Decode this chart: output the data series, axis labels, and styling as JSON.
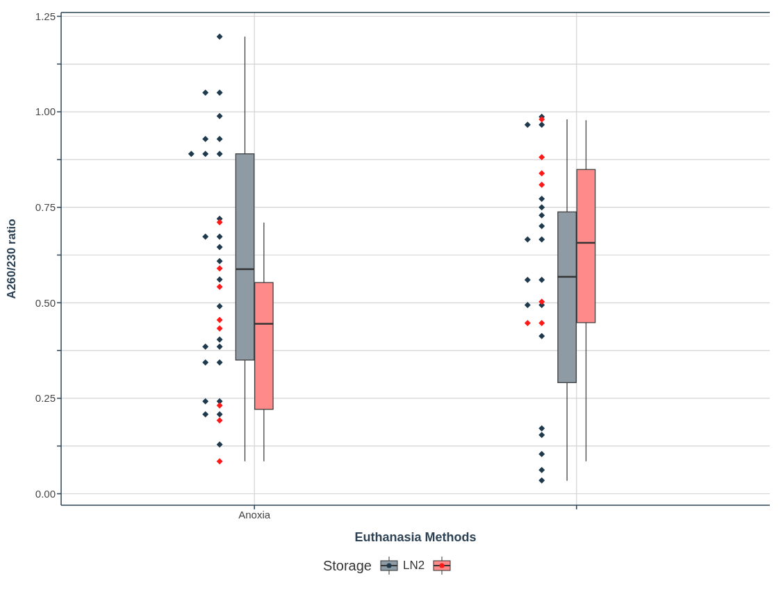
{
  "chart_data": {
    "type": "box",
    "xlabel": "Euthanasia Methods",
    "ylabel": "A260/230 ratio",
    "legend_title": "Storage",
    "legend": "bottom",
    "grid": true,
    "marker": "diamond",
    "categories": [
      "Anoxia",
      null
    ],
    "ylim": [
      -0.03,
      1.26
    ],
    "yticks": [
      {
        "value": 0,
        "label": "0.00"
      },
      {
        "value": 0.125,
        "label": null
      },
      {
        "value": 0.25,
        "label": "0.25"
      },
      {
        "value": 0.375,
        "label": null
      },
      {
        "value": 0.5,
        "label": "0.50"
      },
      {
        "value": 0.625,
        "label": null
      },
      {
        "value": 0.75,
        "label": "0.75"
      },
      {
        "value": 0.875,
        "label": null
      },
      {
        "value": 1,
        "label": "1.00"
      },
      {
        "value": 1.125,
        "label": null
      },
      {
        "value": 1.25,
        "label": "1.25"
      }
    ],
    "series": [
      {
        "name": "LN2",
        "color": "#8e9ba5",
        "boxes": [
          {
            "low": 0.085,
            "q1": 0.35,
            "median": 0.588,
            "q3": 0.89,
            "high": 1.197
          },
          {
            "low": 0.034,
            "q1": 0.291,
            "median": 0.568,
            "q3": 0.738,
            "high": 0.98
          }
        ]
      },
      {
        "color": "#ff8a8a",
        "boxes": [
          {
            "low": 0.085,
            "q1": 0.221,
            "median": 0.445,
            "q3": 0.553,
            "high": 0.71
          },
          {
            "low": 0.085,
            "q1": 0.448,
            "median": 0.657,
            "q3": 0.849,
            "high": 0.978
          }
        ]
      },
      {
        "type": "scatter",
        "color": "#1f3a4d",
        "x": [
          "Anoxia",
          "Anoxia",
          "Anoxia",
          "Anoxia",
          "Anoxia",
          "Anoxia",
          "Anoxia",
          "Anoxia",
          "Anoxia",
          "Anoxia",
          "Anoxia",
          "Anoxia",
          "Anoxia",
          "Anoxia",
          "Anoxia",
          "Anoxia",
          "Anoxia",
          "Anoxia",
          "Anoxia",
          "Anoxia",
          "Anoxia",
          "Anoxia",
          "Anoxia",
          "Anoxia",
          "Anoxia",
          "Anoxia",
          null,
          null,
          null,
          null,
          null,
          null,
          null,
          null,
          null,
          null,
          null,
          null,
          null,
          null,
          null,
          null,
          null,
          null,
          null
        ],
        "values": [
          1.197,
          1.05,
          1.05,
          0.989,
          0.929,
          0.929,
          0.89,
          0.89,
          0.89,
          0.72,
          0.673,
          0.673,
          0.646,
          0.609,
          0.561,
          0.491,
          0.404,
          0.385,
          0.385,
          0.344,
          0.344,
          0.242,
          0.242,
          0.208,
          0.208,
          0.129,
          0.987,
          0.966,
          0.966,
          0.772,
          0.75,
          0.729,
          0.701,
          0.666,
          0.666,
          0.56,
          0.56,
          0.494,
          0.494,
          0.413,
          0.171,
          0.154,
          0.104,
          0.062,
          0.035
        ]
      },
      {
        "type": "scatter",
        "color": "#ff1a1a",
        "x": [
          "Anoxia",
          "Anoxia",
          "Anoxia",
          "Anoxia",
          "Anoxia",
          "Anoxia",
          "Anoxia",
          "Anoxia",
          null,
          null,
          null,
          null,
          null,
          null,
          null
        ],
        "values": [
          0.711,
          0.59,
          0.542,
          0.455,
          0.433,
          0.231,
          0.192,
          0.085,
          0.98,
          0.881,
          0.839,
          0.809,
          0.503,
          0.447,
          0.447
        ]
      }
    ]
  }
}
